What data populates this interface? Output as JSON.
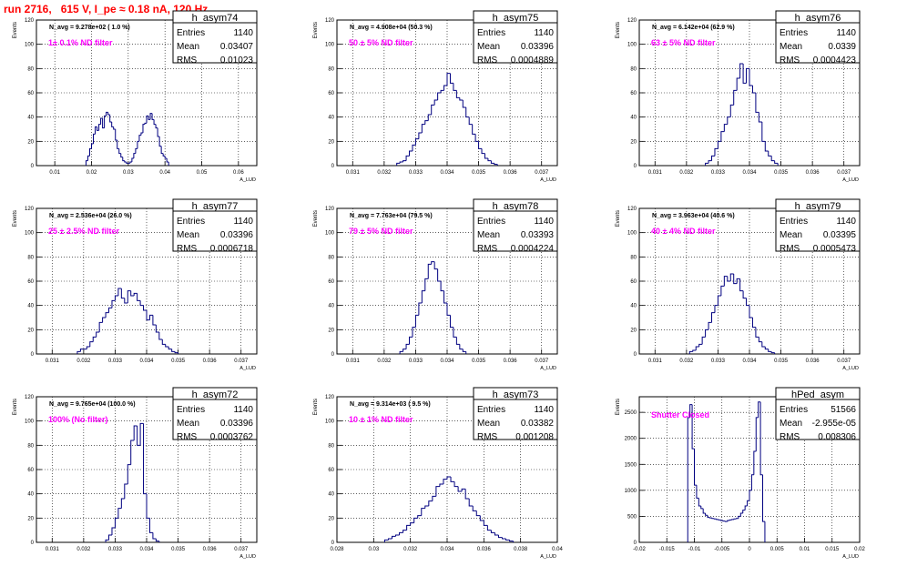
{
  "header": {
    "run_title": "run 2716,   615 V, I_pe ≈ 0.18 nA, 120 Hz"
  },
  "colors": {
    "histogram": "#000080",
    "annotation": "#ff00ff",
    "title": "#ff0000"
  },
  "chart_data": [
    {
      "type": "histogram",
      "name": "h_asym74",
      "stats": {
        "Entries": "1140",
        "Mean": "0.03407",
        "RMS": "0.01023"
      },
      "navg": "N_avg = 9.278e+02 ( 1.0 %)",
      "label": "1± 0.1% ND filter",
      "ylabel": "Events",
      "xlabel": "A_LUD",
      "xlim": [
        0.005,
        0.065
      ],
      "ylim": [
        0,
        120
      ],
      "xticks": [
        0.01,
        0.02,
        0.03,
        0.04,
        0.05,
        0.06
      ],
      "xtick_labels": [
        "0.01",
        "0.02",
        "0.03",
        "0.04",
        "0.05",
        "0.06"
      ],
      "yticks": [
        0,
        20,
        40,
        60,
        80,
        100,
        120
      ],
      "bin_start": 0.0185,
      "bin_width": 0.0005,
      "values": [
        4,
        8,
        14,
        18,
        26,
        32,
        29,
        34,
        39,
        31,
        41,
        44,
        42,
        36,
        32,
        30,
        21,
        14,
        10,
        7,
        4,
        3,
        2,
        2,
        3,
        6,
        10,
        14,
        20,
        25,
        27,
        34,
        35,
        41,
        38,
        43,
        38,
        34,
        31,
        24,
        16,
        10,
        8,
        6,
        3
      ]
    },
    {
      "type": "histogram",
      "name": "h_asym75",
      "stats": {
        "Entries": "1140",
        "Mean": "0.03396",
        "RMS": "0.0004889"
      },
      "navg": "N_avg = 4.908e+04 (50.3 %)",
      "label": "50 ± 5% ND filter",
      "ylabel": "Events",
      "xlabel": "A_LUD",
      "xlim": [
        0.0305,
        0.0375
      ],
      "ylim": [
        0,
        120
      ],
      "xticks": [
        0.031,
        0.032,
        0.033,
        0.034,
        0.035,
        0.036,
        0.037
      ],
      "xtick_labels": [
        "0.031",
        "0.032",
        "0.033",
        "0.034",
        "0.035",
        "0.036",
        "0.037"
      ],
      "yticks": [
        0,
        20,
        40,
        60,
        80,
        100,
        120
      ],
      "bin_start": 0.0324,
      "bin_width": 0.0001,
      "values": [
        2,
        3,
        4,
        8,
        12,
        17,
        22,
        27,
        34,
        37,
        42,
        50,
        54,
        60,
        62,
        66,
        76,
        68,
        62,
        56,
        54,
        48,
        40,
        34,
        26,
        20,
        14,
        10,
        6,
        4,
        2,
        1
      ]
    },
    {
      "type": "histogram",
      "name": "h_asym76",
      "stats": {
        "Entries": "1140",
        "Mean": "0.0339",
        "RMS": "0.0004423"
      },
      "navg": "N_avg = 6.142e+04 (62.9 %)",
      "label": "63 ± 5% ND filter",
      "ylabel": "Events",
      "xlabel": "A_LUD",
      "xlim": [
        0.0305,
        0.0375
      ],
      "ylim": [
        0,
        120
      ],
      "xticks": [
        0.031,
        0.032,
        0.033,
        0.034,
        0.035,
        0.036,
        0.037
      ],
      "xtick_labels": [
        "0.031",
        "0.032",
        "0.033",
        "0.034",
        "0.035",
        "0.036",
        "0.037"
      ],
      "yticks": [
        0,
        20,
        40,
        60,
        80,
        100,
        120
      ],
      "bin_start": 0.0326,
      "bin_width": 0.0001,
      "values": [
        2,
        4,
        8,
        14,
        20,
        28,
        34,
        40,
        50,
        62,
        72,
        84,
        68,
        80,
        66,
        60,
        44,
        36,
        20,
        12,
        8,
        4,
        2
      ]
    },
    {
      "type": "histogram",
      "name": "h_asym77",
      "stats": {
        "Entries": "1140",
        "Mean": "0.03396",
        "RMS": "0.0006718"
      },
      "navg": "N_avg = 2.536e+04 (26.0 %)",
      "label": "25 ± 2.5% ND filter",
      "ylabel": "Events",
      "xlabel": "A_LUD",
      "xlim": [
        0.0305,
        0.0375
      ],
      "ylim": [
        0,
        120
      ],
      "xticks": [
        0.031,
        0.032,
        0.033,
        0.034,
        0.035,
        0.036,
        0.037
      ],
      "xtick_labels": [
        "0.031",
        "0.032",
        "0.033",
        "0.034",
        "0.035",
        "0.036",
        "0.037"
      ],
      "yticks": [
        0,
        20,
        40,
        60,
        80,
        100,
        120
      ],
      "bin_start": 0.0318,
      "bin_width": 0.0001,
      "values": [
        2,
        4,
        4,
        6,
        10,
        14,
        18,
        26,
        30,
        34,
        38,
        44,
        48,
        54,
        46,
        42,
        52,
        48,
        50,
        44,
        40,
        36,
        28,
        32,
        24,
        18,
        12,
        8,
        6,
        4,
        2,
        1
      ]
    },
    {
      "type": "histogram",
      "name": "h_asym78",
      "stats": {
        "Entries": "1140",
        "Mean": "0.03393",
        "RMS": "0.0004224"
      },
      "navg": "N_avg = 7.763e+04 (79.5 %)",
      "label": "79 ± 5% ND filter",
      "ylabel": "Events",
      "xlabel": "A_LUD",
      "xlim": [
        0.0305,
        0.0375
      ],
      "ylim": [
        0,
        120
      ],
      "xticks": [
        0.031,
        0.032,
        0.033,
        0.034,
        0.035,
        0.036,
        0.037
      ],
      "xtick_labels": [
        "0.031",
        "0.032",
        "0.033",
        "0.034",
        "0.035",
        "0.036",
        "0.037"
      ],
      "yticks": [
        0,
        20,
        40,
        60,
        80,
        100,
        120
      ],
      "bin_start": 0.0325,
      "bin_width": 0.0001,
      "values": [
        2,
        4,
        8,
        14,
        22,
        32,
        42,
        52,
        62,
        74,
        76,
        70,
        60,
        52,
        42,
        32,
        22,
        14,
        8,
        4,
        2
      ]
    },
    {
      "type": "histogram",
      "name": "h_asym79",
      "stats": {
        "Entries": "1140",
        "Mean": "0.03395",
        "RMS": "0.0005473"
      },
      "navg": "N_avg = 3.963e+04 (40.6 %)",
      "label": "40 ± 4% ND filter",
      "ylabel": "Events",
      "xlabel": "A_LUD",
      "xlim": [
        0.0305,
        0.0375
      ],
      "ylim": [
        0,
        120
      ],
      "xticks": [
        0.031,
        0.032,
        0.033,
        0.034,
        0.035,
        0.036,
        0.037
      ],
      "xtick_labels": [
        "0.031",
        "0.032",
        "0.033",
        "0.034",
        "0.035",
        "0.036",
        "0.037"
      ],
      "yticks": [
        0,
        20,
        40,
        60,
        80,
        100,
        120
      ],
      "bin_start": 0.0321,
      "bin_width": 0.0001,
      "values": [
        2,
        3,
        6,
        8,
        14,
        20,
        26,
        34,
        40,
        48,
        56,
        64,
        60,
        66,
        58,
        62,
        52,
        46,
        40,
        30,
        22,
        14,
        10,
        6,
        4,
        2,
        1
      ]
    },
    {
      "type": "histogram",
      "name": "h_asym72",
      "stats": {
        "Entries": "1140",
        "Mean": "0.03396",
        "RMS": "0.0003762"
      },
      "navg": "N_avg = 9.765e+04 (100.0 %)",
      "label": "100% (No filter)",
      "ylabel": "Events",
      "xlabel": "A_LUD",
      "xlim": [
        0.0305,
        0.0375
      ],
      "ylim": [
        0,
        120
      ],
      "xticks": [
        0.031,
        0.032,
        0.033,
        0.034,
        0.035,
        0.036,
        0.037
      ],
      "xtick_labels": [
        "0.031",
        "0.032",
        "0.033",
        "0.034",
        "0.035",
        "0.036",
        "0.037"
      ],
      "yticks": [
        0,
        20,
        40,
        60,
        80,
        100,
        120
      ],
      "bin_start": 0.0327,
      "bin_width": 0.0001,
      "values": [
        2,
        6,
        12,
        20,
        28,
        36,
        48,
        64,
        84,
        96,
        80,
        98,
        40,
        20,
        8,
        3,
        1
      ]
    },
    {
      "type": "histogram",
      "name": "h_asym73",
      "stats": {
        "Entries": "1140",
        "Mean": "0.03382",
        "RMS": "0.001208"
      },
      "navg": "N_avg = 9.314e+03 ( 9.5 %)",
      "label": "10 ± 1% ND filter",
      "ylabel": "Events",
      "xlabel": "A_LUD",
      "xlim": [
        0.028,
        0.04
      ],
      "ylim": [
        0,
        120
      ],
      "xticks": [
        0.028,
        0.03,
        0.032,
        0.034,
        0.036,
        0.038,
        0.04
      ],
      "xtick_labels": [
        "0.028",
        "0.03",
        "0.032",
        "0.034",
        "0.036",
        "0.038",
        "0.04"
      ],
      "yticks": [
        0,
        20,
        40,
        60,
        80,
        100,
        120
      ],
      "bin_start": 0.0306,
      "bin_width": 0.0002,
      "values": [
        2,
        3,
        5,
        6,
        8,
        10,
        14,
        16,
        20,
        22,
        28,
        30,
        34,
        38,
        46,
        48,
        52,
        54,
        50,
        46,
        42,
        44,
        36,
        30,
        26,
        22,
        18,
        14,
        10,
        8,
        6,
        4,
        3,
        2,
        1
      ]
    },
    {
      "type": "histogram",
      "name": "hPed_asym",
      "stats": {
        "Entries": "51566",
        "Mean": "-2.955e-05",
        "RMS": "0.008306"
      },
      "label": "Shutter Closed",
      "ylabel": "Events",
      "xlabel": "A_LUD",
      "xlim": [
        -0.02,
        0.02
      ],
      "ylim": [
        0,
        2800
      ],
      "xticks": [
        -0.02,
        -0.015,
        -0.01,
        -0.005,
        0,
        0.005,
        0.01,
        0.015,
        0.02
      ],
      "xtick_labels": [
        "-0.02",
        "-0.015",
        "-0.01",
        "-0.005",
        "0",
        "0.005",
        "0.01",
        "0.015",
        "0.02"
      ],
      "yticks": [
        0,
        500,
        1000,
        1500,
        2000,
        2500
      ],
      "bin_start": -0.0112,
      "bin_width": 0.0004,
      "values": [
        2400,
        2650,
        1800,
        1100,
        850,
        700,
        650,
        560,
        520,
        480,
        470,
        460,
        450,
        440,
        430,
        420,
        410,
        400,
        420,
        430,
        440,
        450,
        460,
        500,
        560,
        620,
        700,
        800,
        1000,
        1300,
        1750,
        2400,
        2700,
        1300,
        400
      ]
    }
  ]
}
